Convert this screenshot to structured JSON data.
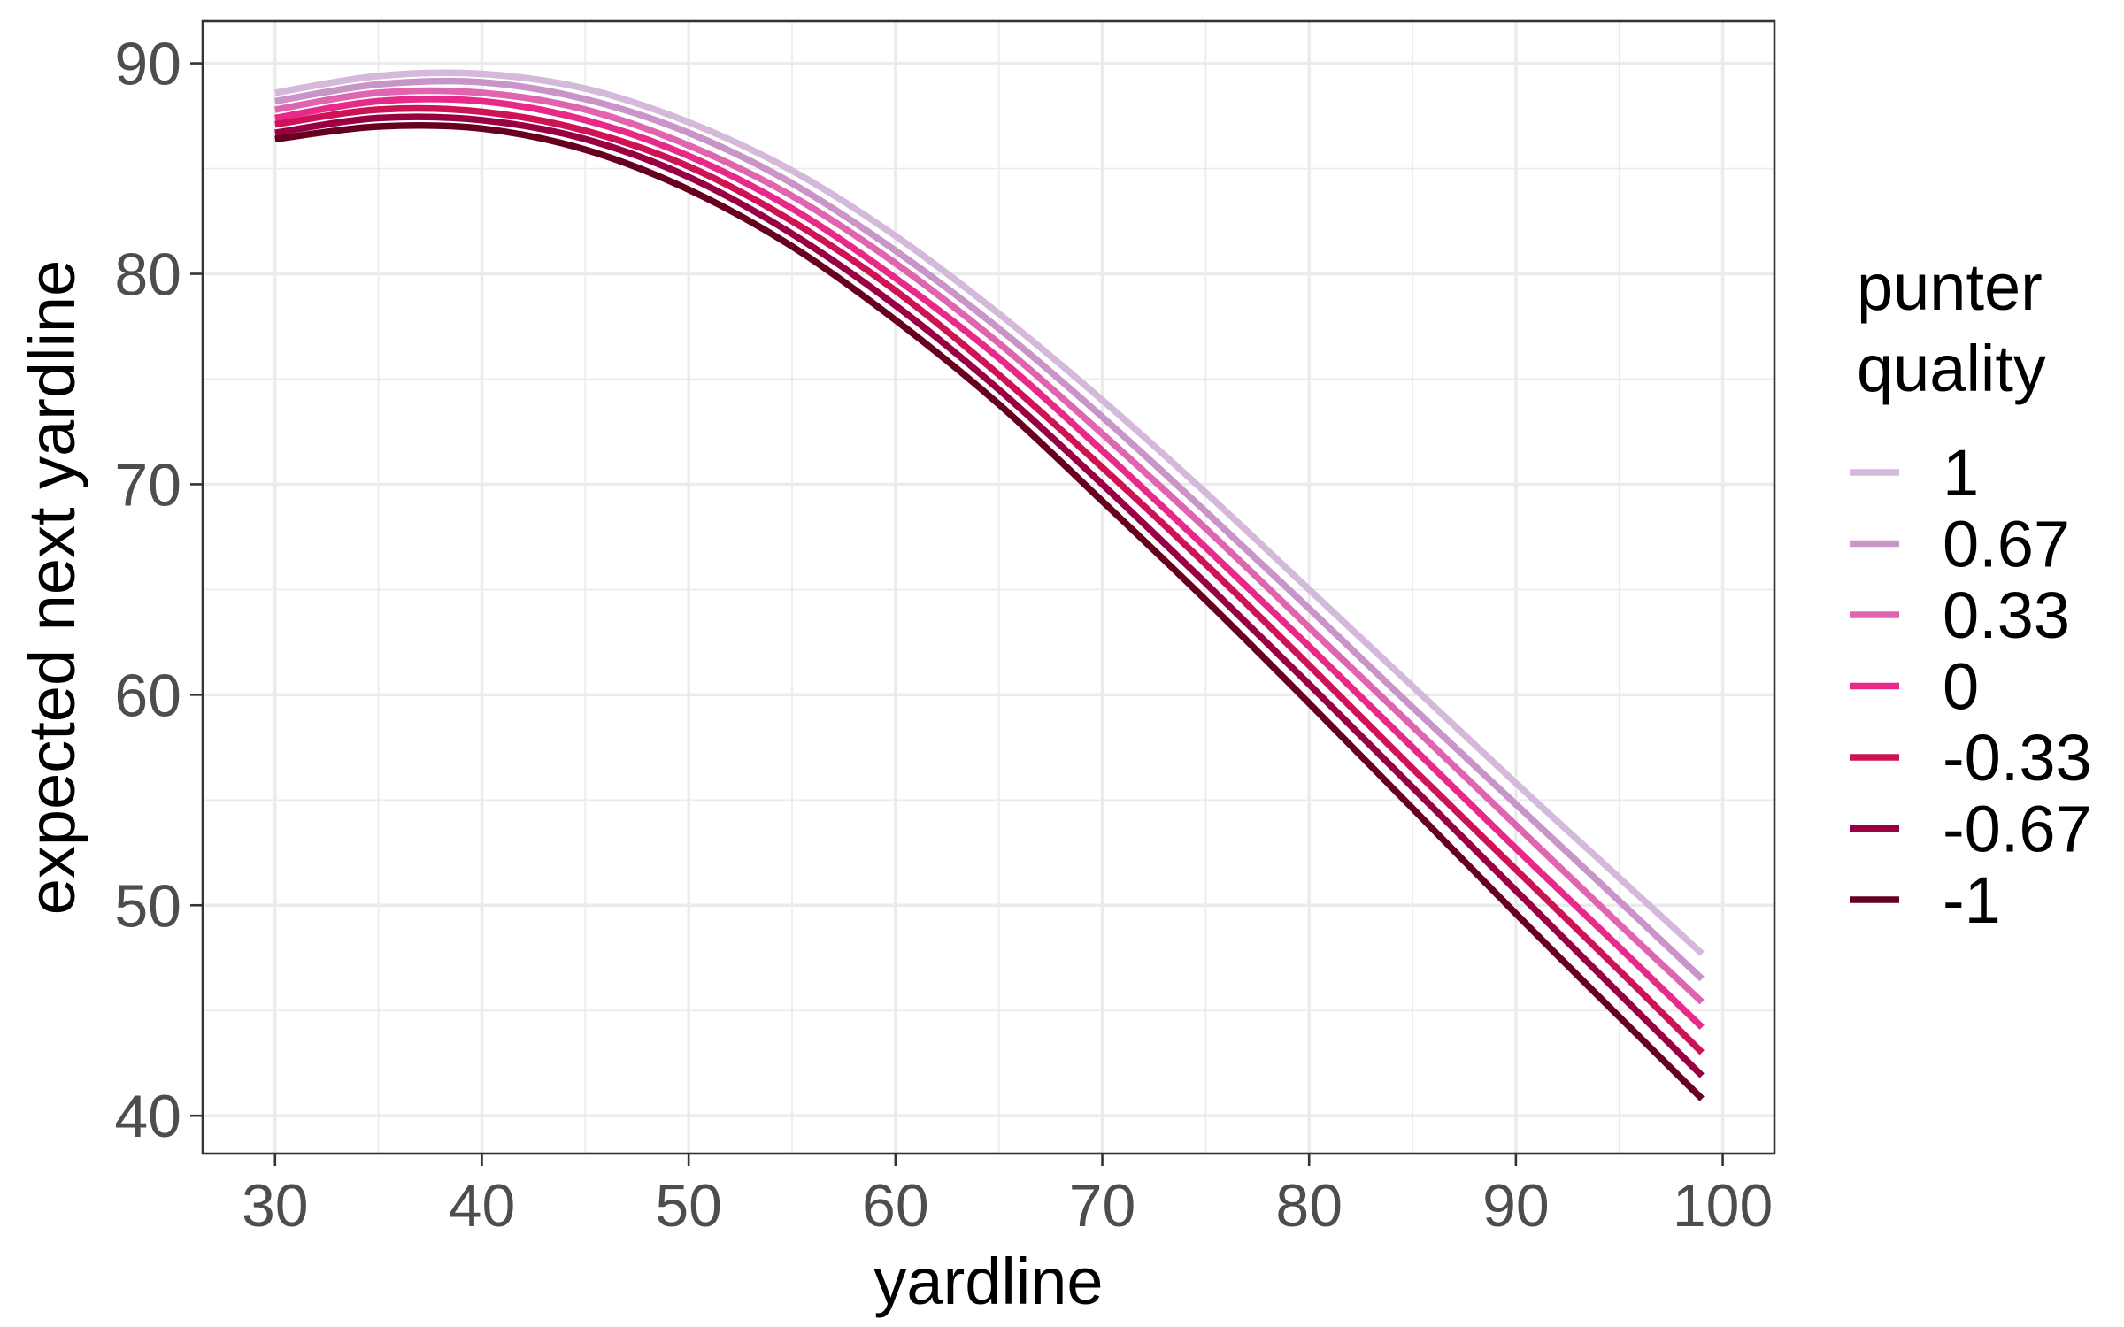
{
  "chart_data": {
    "type": "line",
    "title": "",
    "xlabel": "yardline",
    "ylabel": "expected next yardline",
    "xlim": [
      26.5,
      102.5
    ],
    "ylim": [
      38.2,
      92.0
    ],
    "x_ticks": [
      30,
      40,
      50,
      60,
      70,
      80,
      90,
      100
    ],
    "y_ticks": [
      40,
      50,
      60,
      70,
      80,
      90
    ],
    "grid": true,
    "legend": {
      "title_lines": [
        "punter",
        "quality"
      ],
      "placement": "right"
    },
    "x": [
      30,
      35,
      40,
      45,
      50,
      55,
      60,
      65,
      70,
      75,
      80,
      85,
      90,
      95,
      99
    ],
    "series": [
      {
        "name": "1",
        "color": "#d4b9da",
        "values": [
          88.6,
          89.4,
          89.5,
          88.8,
          87.2,
          84.9,
          81.8,
          78.1,
          74.0,
          69.6,
          65.0,
          60.4,
          55.8,
          51.3,
          47.7
        ]
      },
      {
        "name": "0.67",
        "color": "#c994c7",
        "values": [
          88.2,
          89.0,
          89.1,
          88.3,
          86.7,
          84.3,
          81.1,
          77.4,
          73.2,
          68.7,
          64.1,
          59.4,
          54.8,
          50.2,
          46.5
        ]
      },
      {
        "name": "0.33",
        "color": "#df65b0",
        "values": [
          87.8,
          88.6,
          88.6,
          87.8,
          86.1,
          83.7,
          80.5,
          76.7,
          72.4,
          67.9,
          63.2,
          58.5,
          53.8,
          49.1,
          45.4
        ]
      },
      {
        "name": "0",
        "color": "#e7298a",
        "values": [
          87.4,
          88.2,
          88.2,
          87.3,
          85.6,
          83.1,
          79.8,
          76.0,
          71.6,
          67.0,
          62.3,
          57.5,
          52.7,
          48.0,
          44.2
        ]
      },
      {
        "name": "-0.33",
        "color": "#ce1256",
        "values": [
          87.1,
          87.8,
          87.7,
          86.8,
          85.1,
          82.5,
          79.2,
          75.2,
          70.8,
          66.2,
          61.4,
          56.5,
          51.7,
          46.9,
          43.0
        ]
      },
      {
        "name": "-0.67",
        "color": "#980043",
        "values": [
          86.7,
          87.4,
          87.3,
          86.4,
          84.6,
          81.9,
          78.5,
          74.5,
          70.0,
          65.3,
          60.5,
          55.6,
          50.7,
          45.8,
          41.9
        ]
      },
      {
        "name": "-1",
        "color": "#67001f",
        "values": [
          86.4,
          87.0,
          86.9,
          85.9,
          84.0,
          81.3,
          77.8,
          73.8,
          69.2,
          64.5,
          59.6,
          54.6,
          49.6,
          44.7,
          40.8
        ]
      }
    ]
  }
}
